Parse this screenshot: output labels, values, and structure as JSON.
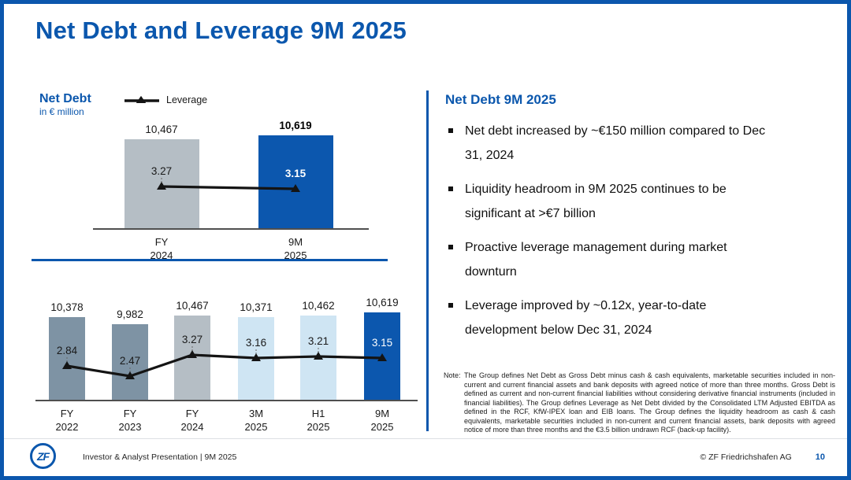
{
  "slide": {
    "title": "Net Debt and Leverage 9M 2025"
  },
  "colors": {
    "brand_blue": "#0b57ad",
    "bar_slate": "#7e93a4",
    "bar_gray": "#b5bec5",
    "bar_light_blue": "#cfe5f3",
    "bar_brand_blue": "#0c57ae",
    "line_black": "#141414"
  },
  "left_panel": {
    "chart_title": "Net Debt",
    "chart_subtitle": "in € million",
    "legend_label": "Leverage"
  },
  "chart_data": [
    {
      "type": "bar",
      "subtype": "bars-with-leverage-line",
      "title": "Net Debt FY 2024 vs 9M 2025",
      "ylabel": "Net Debt in € million",
      "categories": [
        "FY 2024",
        "9M 2025"
      ],
      "series": [
        {
          "name": "Net Debt (€ million)",
          "type": "bar",
          "values": [
            10467,
            10619
          ],
          "labels": [
            "10,467",
            "10,619"
          ],
          "label_bold": [
            false,
            true
          ],
          "bar_colors": [
            "#b5bec5",
            "#0c57ae"
          ]
        },
        {
          "name": "Leverage",
          "type": "line",
          "values": [
            3.27,
            3.15
          ],
          "labels": [
            "3.27",
            "3.15"
          ],
          "label_white": [
            false,
            true
          ],
          "label_bold": [
            false,
            true
          ]
        }
      ],
      "ylim": [
        7000,
        10619
      ],
      "grid": false,
      "legend_position": "top"
    },
    {
      "type": "bar",
      "subtype": "bars-with-leverage-line",
      "title": "Net Debt FY 2022 - 9M 2025",
      "ylabel": "Net Debt in € million",
      "categories": [
        "FY 2022",
        "FY 2023",
        "FY 2024",
        "3M 2025",
        "H1 2025",
        "9M 2025"
      ],
      "series": [
        {
          "name": "Net Debt (€ million)",
          "type": "bar",
          "values": [
            10378,
            9982,
            10467,
            10371,
            10462,
            10619
          ],
          "labels": [
            "10,378",
            "9,982",
            "10,467",
            "10,371",
            "10,462",
            "10,619"
          ],
          "label_bold": [
            false,
            false,
            false,
            false,
            false,
            false
          ],
          "bar_colors": [
            "#7e93a4",
            "#7e93a4",
            "#b5bec5",
            "#cfe5f3",
            "#cfe5f3",
            "#0c57ae"
          ]
        },
        {
          "name": "Leverage",
          "type": "line",
          "values": [
            2.84,
            2.47,
            3.27,
            3.16,
            3.21,
            3.15
          ],
          "labels": [
            "2.84",
            "2.47",
            "3.27",
            "3.16",
            "3.21",
            "3.15"
          ],
          "label_white": [
            false,
            false,
            false,
            false,
            false,
            true
          ],
          "label_bold": [
            false,
            false,
            false,
            false,
            false,
            false
          ]
        }
      ],
      "ylim": [
        6000,
        10619
      ],
      "grid": false
    }
  ],
  "right_panel": {
    "heading": "Net Debt 9M 2025",
    "bullets": [
      "Net debt increased by ~€150 million compared to Dec 31, 2024",
      "Liquidity headroom in 9M 2025 continues to be significant at >€7 billion",
      "Proactive leverage management during market downturn",
      "Leverage improved by ~0.12x, year-to-date development below Dec 31, 2024"
    ],
    "note_label": "Note:",
    "note_text": "The Group defines Net Debt as Gross Debt minus cash & cash equivalents, marketable securities included in non-current and current financial assets and bank deposits with agreed notice of more than three months. Gross Debt is defined as current and non-current financial liabilities without considering derivative financial instruments (included in financial liabilities). The Group defines Leverage as Net Debt divided by the Consolidated LTM Adjusted EBITDA as defined in the RCF, KfW-IPEX loan and EIB loans. The Group defines the liquidity headroom as cash & cash equivalents, marketable securities included in non-current and current financial assets, bank deposits with agreed notice of more than three months and the €3.5 billion undrawn RCF (back-up facility)."
  },
  "footer": {
    "logo_text": "ZF",
    "presentation_label": "Investor & Analyst Presentation | 9M 2025",
    "copyright": "© ZF Friedrichshafen AG",
    "page_number": "10"
  }
}
